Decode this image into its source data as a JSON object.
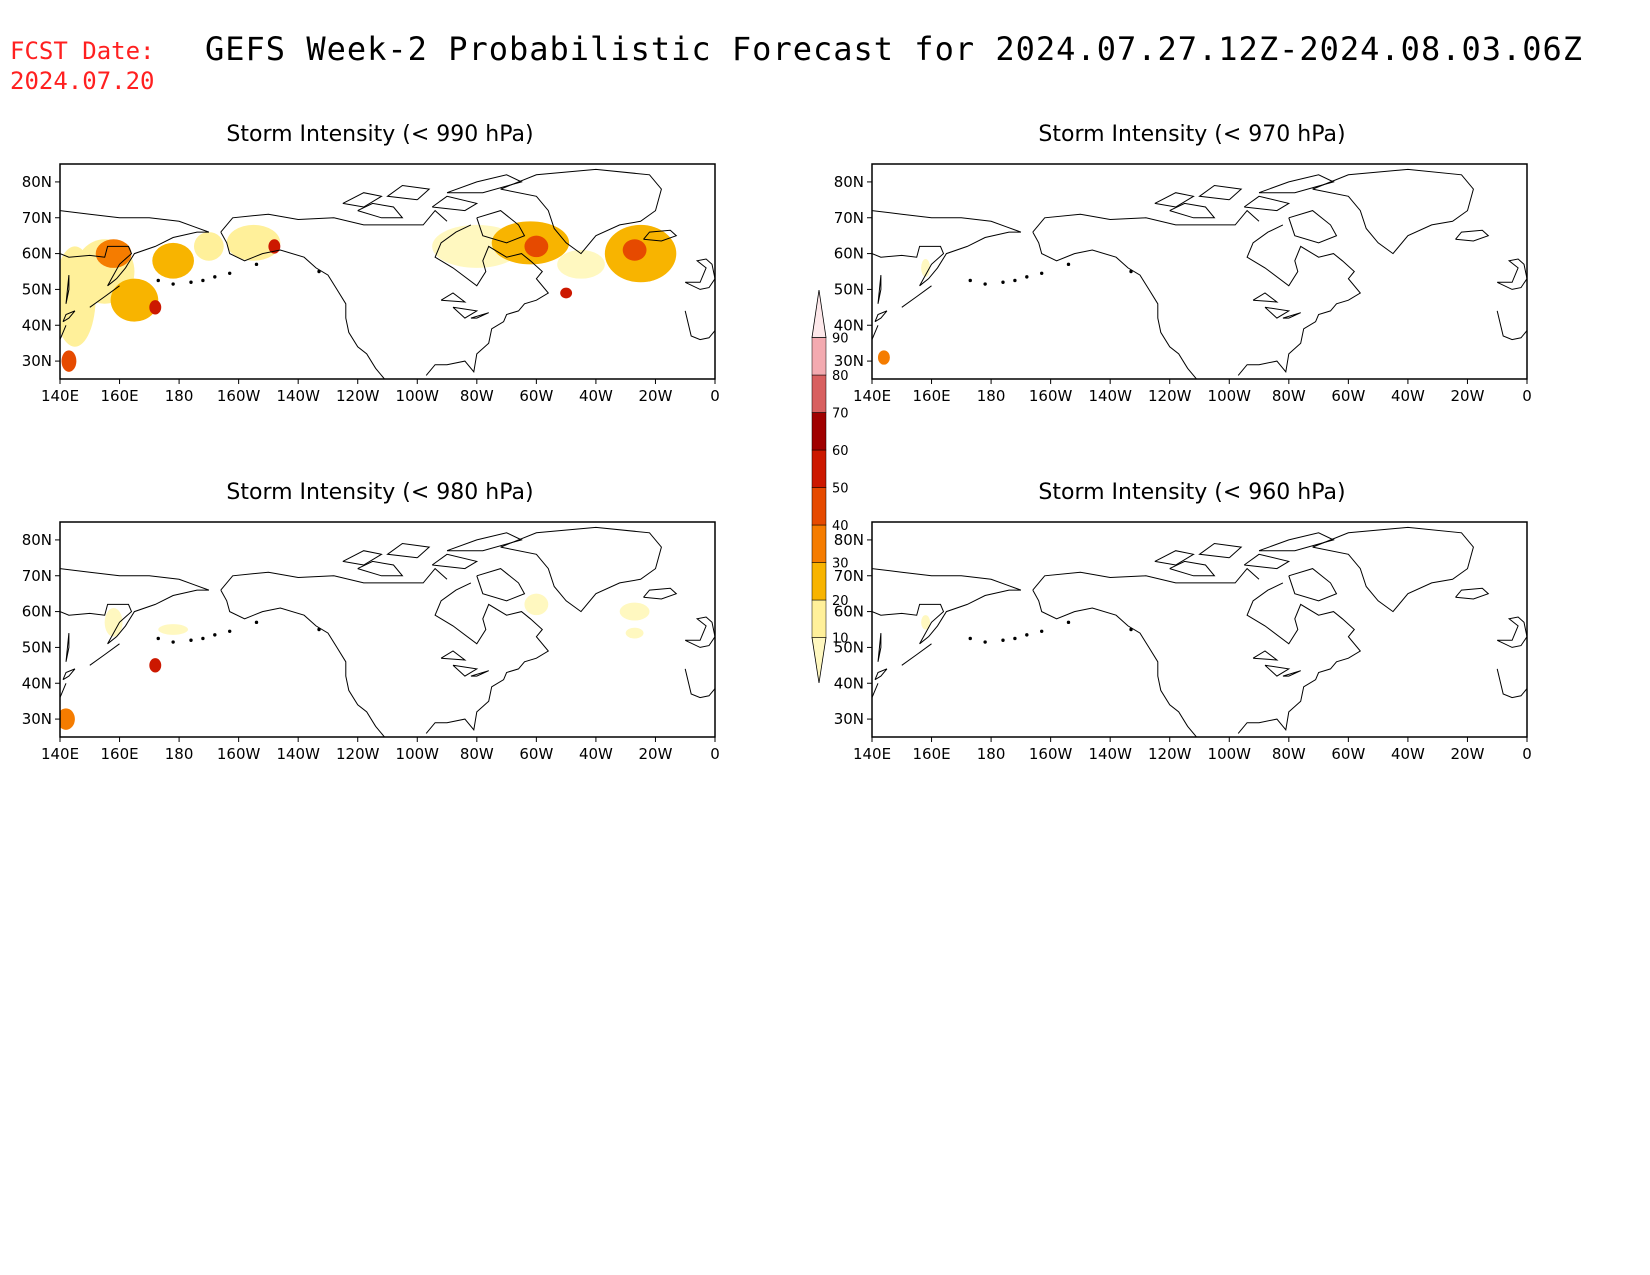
{
  "fcst": {
    "line1": "FCST Date:",
    "line2": "2024.07.20"
  },
  "title": "GEFS Week-2 Probabilistic Forecast for 2024.07.27.12Z-2024.08.03.06Z",
  "colorbar": {
    "levels": [
      "10",
      "20",
      "30",
      "40",
      "50",
      "60",
      "70",
      "80",
      "90"
    ],
    "colors": [
      "#fff8c0",
      "#fff09a",
      "#f8b400",
      "#f57c00",
      "#e64a00",
      "#cc1800",
      "#a00000",
      "#d86060",
      "#f3aab0",
      "#fde8ea"
    ]
  },
  "axes": {
    "x_ticks": [
      "140E",
      "160E",
      "180",
      "160W",
      "140W",
      "120W",
      "100W",
      "80W",
      "60W",
      "40W",
      "20W",
      "0"
    ],
    "y_ticks": [
      "30N",
      "40N",
      "50N",
      "60N",
      "70N",
      "80N"
    ]
  },
  "panels": [
    {
      "title": "Storm Intensity (< 990 hPa)",
      "id": "p990",
      "blobs": [
        {
          "lon": 145,
          "lat": 48,
          "w": 14,
          "h": 28,
          "c": 1
        },
        {
          "lon": 155,
          "lat": 55,
          "w": 20,
          "h": 18,
          "c": 1
        },
        {
          "lon": 158,
          "lat": 60,
          "w": 12,
          "h": 8,
          "c": 3
        },
        {
          "lon": 165,
          "lat": 47,
          "w": 16,
          "h": 12,
          "c": 2
        },
        {
          "lon": 172,
          "lat": 45,
          "w": 4,
          "h": 4,
          "c": 5
        },
        {
          "lon": 178,
          "lat": 58,
          "w": 14,
          "h": 10,
          "c": 2
        },
        {
          "lon": 143,
          "lat": 30,
          "w": 5,
          "h": 6,
          "c": 4
        },
        {
          "lon": -170,
          "lat": 62,
          "w": 10,
          "h": 8,
          "c": 1
        },
        {
          "lon": -155,
          "lat": 63,
          "w": 18,
          "h": 10,
          "c": 1
        },
        {
          "lon": -148,
          "lat": 62,
          "w": 4,
          "h": 4,
          "c": 5
        },
        {
          "lon": -80,
          "lat": 62,
          "w": 30,
          "h": 12,
          "c": 0
        },
        {
          "lon": -62,
          "lat": 63,
          "w": 26,
          "h": 12,
          "c": 2
        },
        {
          "lon": -60,
          "lat": 62,
          "w": 8,
          "h": 6,
          "c": 4
        },
        {
          "lon": -45,
          "lat": 57,
          "w": 16,
          "h": 8,
          "c": 0
        },
        {
          "lon": -50,
          "lat": 49,
          "w": 4,
          "h": 3,
          "c": 5
        },
        {
          "lon": -25,
          "lat": 60,
          "w": 24,
          "h": 16,
          "c": 2
        },
        {
          "lon": -27,
          "lat": 61,
          "w": 8,
          "h": 6,
          "c": 4
        }
      ]
    },
    {
      "title": "Storm Intensity (< 970 hPa)",
      "id": "p970",
      "blobs": [
        {
          "lon": 158,
          "lat": 56,
          "w": 3,
          "h": 5,
          "c": 0
        },
        {
          "lon": 144,
          "lat": 31,
          "w": 4,
          "h": 4,
          "c": 3
        }
      ]
    },
    {
      "title": "Storm Intensity (< 980 hPa)",
      "id": "p980",
      "blobs": [
        {
          "lon": 158,
          "lat": 57,
          "w": 6,
          "h": 8,
          "c": 0
        },
        {
          "lon": 178,
          "lat": 55,
          "w": 10,
          "h": 3,
          "c": 0
        },
        {
          "lon": 172,
          "lat": 45,
          "w": 4,
          "h": 4,
          "c": 5
        },
        {
          "lon": 142,
          "lat": 30,
          "w": 6,
          "h": 6,
          "c": 3
        },
        {
          "lon": -60,
          "lat": 62,
          "w": 8,
          "h": 6,
          "c": 0
        },
        {
          "lon": -27,
          "lat": 60,
          "w": 10,
          "h": 5,
          "c": 0
        },
        {
          "lon": -27,
          "lat": 54,
          "w": 6,
          "h": 3,
          "c": 0
        }
      ]
    },
    {
      "title": "Storm Intensity (< 960 hPa)",
      "id": "p960",
      "blobs": [
        {
          "lon": 158,
          "lat": 57,
          "w": 3,
          "h": 4,
          "c": 0
        }
      ]
    }
  ]
}
